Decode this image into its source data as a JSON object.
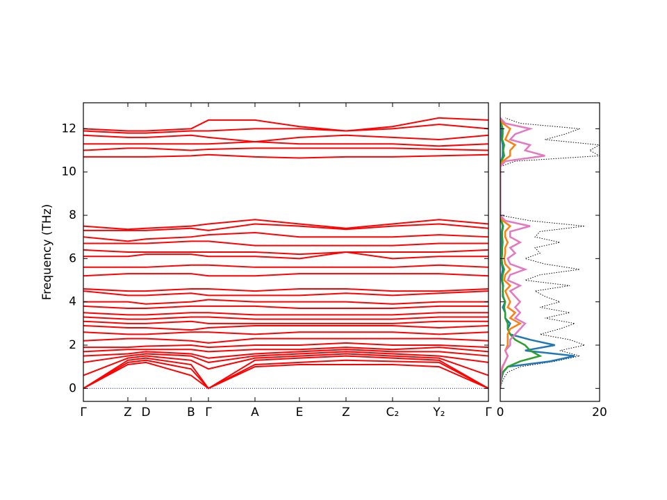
{
  "chart_data": [
    {
      "type": "line",
      "ylabel": "Frequency (THz)",
      "color": "#ff0000",
      "zero_line": {
        "value": 0,
        "color": "#0000cc"
      },
      "x": [
        0,
        0.64,
        0.9,
        1.55,
        1.8,
        2.47,
        3.11,
        3.78,
        4.45,
        5.12,
        5.83
      ],
      "xlim": [
        0,
        5.83
      ],
      "xticks": [
        {
          "value": 0,
          "label": "Γ"
        },
        {
          "value": 0.64,
          "label": "Z"
        },
        {
          "value": 0.9,
          "label": "D"
        },
        {
          "value": 1.55,
          "label": "B"
        },
        {
          "value": 1.8,
          "label": "Γ"
        },
        {
          "value": 2.47,
          "label": "A"
        },
        {
          "value": 3.11,
          "label": "E"
        },
        {
          "value": 3.78,
          "label": "Z"
        },
        {
          "value": 4.45,
          "label": "C₂"
        },
        {
          "value": 5.12,
          "label": "Y₂"
        },
        {
          "value": 5.83,
          "label": "Γ"
        }
      ],
      "ylim": [
        -0.6,
        13.2
      ],
      "yticks": [
        0,
        2,
        4,
        6,
        8,
        10,
        12
      ],
      "series": [
        {
          "values": [
            0,
            1.1,
            1.2,
            0.6,
            0,
            1.0,
            1.1,
            1.1,
            1.1,
            1.0,
            0
          ]
        },
        {
          "values": [
            0,
            1.2,
            1.3,
            0.9,
            0,
            1.1,
            1.2,
            1.3,
            1.25,
            1.2,
            0
          ]
        },
        {
          "values": [
            0,
            1.3,
            1.4,
            1.1,
            0,
            1.3,
            1.4,
            1.5,
            1.4,
            1.3,
            0
          ]
        },
        {
          "values": [
            0.6,
            1.4,
            1.5,
            1.3,
            0.9,
            1.4,
            1.5,
            1.6,
            1.5,
            1.4,
            0.6
          ]
        },
        {
          "values": [
            1.2,
            1.5,
            1.6,
            1.5,
            1.2,
            1.5,
            1.6,
            1.7,
            1.6,
            1.5,
            1.2
          ]
        },
        {
          "values": [
            1.5,
            1.6,
            1.7,
            1.6,
            1.4,
            1.6,
            1.7,
            1.8,
            1.7,
            1.7,
            1.5
          ]
        },
        {
          "values": [
            1.7,
            1.8,
            1.8,
            1.8,
            1.7,
            1.8,
            1.8,
            1.9,
            1.8,
            1.9,
            1.7
          ]
        },
        {
          "values": [
            1.9,
            1.9,
            1.95,
            2.0,
            1.9,
            2.0,
            2.0,
            2.1,
            2.0,
            2.0,
            1.9
          ]
        },
        {
          "values": [
            2.2,
            2.3,
            2.3,
            2.2,
            2.1,
            2.3,
            2.3,
            2.3,
            2.3,
            2.3,
            2.2
          ]
        },
        {
          "values": [
            2.6,
            2.5,
            2.5,
            2.6,
            2.6,
            2.5,
            2.6,
            2.6,
            2.6,
            2.5,
            2.6
          ]
        },
        {
          "values": [
            2.9,
            2.8,
            2.8,
            2.7,
            2.8,
            2.9,
            2.9,
            2.9,
            2.9,
            2.8,
            2.9
          ]
        },
        {
          "values": [
            3.1,
            3.0,
            3.0,
            3.1,
            3.0,
            3.0,
            3.0,
            3.0,
            3.0,
            3.1,
            3.1
          ]
        },
        {
          "values": [
            3.3,
            3.2,
            3.2,
            3.3,
            3.3,
            3.2,
            3.2,
            3.2,
            3.2,
            3.3,
            3.3
          ]
        },
        {
          "values": [
            3.5,
            3.4,
            3.4,
            3.5,
            3.5,
            3.4,
            3.4,
            3.4,
            3.4,
            3.5,
            3.5
          ]
        },
        {
          "values": [
            3.8,
            3.7,
            3.7,
            3.8,
            3.8,
            3.8,
            3.7,
            3.7,
            3.7,
            3.8,
            3.8
          ]
        },
        {
          "values": [
            4.0,
            4.0,
            3.9,
            4.0,
            4.1,
            4.0,
            4.0,
            4.0,
            3.9,
            4.0,
            4.0
          ]
        },
        {
          "values": [
            4.5,
            4.3,
            4.3,
            4.4,
            4.3,
            4.3,
            4.3,
            4.4,
            4.3,
            4.4,
            4.5
          ]
        },
        {
          "values": [
            4.6,
            4.5,
            4.5,
            4.6,
            4.6,
            4.5,
            4.6,
            4.6,
            4.5,
            4.5,
            4.6
          ]
        },
        {
          "values": [
            5.2,
            5.3,
            5.3,
            5.3,
            5.2,
            5.2,
            5.3,
            5.3,
            5.3,
            5.3,
            5.2
          ]
        },
        {
          "values": [
            5.6,
            5.6,
            5.6,
            5.7,
            5.7,
            5.6,
            5.6,
            5.6,
            5.6,
            5.7,
            5.6
          ]
        },
        {
          "values": [
            6.1,
            6.1,
            6.2,
            6.2,
            6.1,
            6.1,
            6.0,
            6.3,
            6.0,
            6.1,
            6.1
          ]
        },
        {
          "values": [
            6.4,
            6.3,
            6.3,
            6.3,
            6.3,
            6.3,
            6.2,
            6.3,
            6.3,
            6.3,
            6.4
          ]
        },
        {
          "values": [
            6.7,
            6.7,
            6.7,
            6.8,
            6.8,
            6.6,
            6.6,
            6.6,
            6.6,
            6.7,
            6.7
          ]
        },
        {
          "values": [
            7.0,
            6.8,
            6.9,
            7.0,
            7.1,
            7.2,
            7.0,
            7.0,
            7.0,
            7.1,
            7.0
          ]
        },
        {
          "values": [
            7.3,
            7.3,
            7.3,
            7.4,
            7.3,
            7.6,
            7.5,
            7.35,
            7.5,
            7.6,
            7.4
          ]
        },
        {
          "values": [
            7.5,
            7.35,
            7.4,
            7.5,
            7.6,
            7.8,
            7.6,
            7.4,
            7.6,
            7.8,
            7.6
          ]
        },
        {
          "values": [
            10.7,
            10.7,
            10.7,
            10.75,
            10.8,
            10.7,
            10.65,
            10.7,
            10.7,
            10.75,
            10.8
          ]
        },
        {
          "values": [
            11.0,
            11.1,
            11.1,
            11.0,
            11.05,
            11.1,
            11.1,
            11.1,
            11.1,
            11.05,
            11.0
          ]
        },
        {
          "values": [
            11.3,
            11.3,
            11.3,
            11.3,
            11.3,
            11.4,
            11.3,
            11.3,
            11.3,
            11.2,
            11.3
          ]
        },
        {
          "values": [
            11.7,
            11.6,
            11.6,
            11.7,
            11.6,
            11.4,
            11.6,
            11.7,
            11.6,
            11.5,
            11.7
          ]
        },
        {
          "values": [
            11.9,
            11.8,
            11.8,
            11.9,
            11.9,
            12.0,
            12.0,
            11.9,
            12.0,
            12.2,
            12.0
          ]
        },
        {
          "values": [
            12.0,
            11.9,
            11.9,
            12.0,
            12.4,
            12.4,
            12.1,
            11.9,
            12.1,
            12.5,
            12.4
          ]
        }
      ]
    },
    {
      "type": "dos",
      "orientation": "horizontal",
      "y": [
        0,
        0.25,
        0.5,
        0.75,
        1,
        1.25,
        1.5,
        1.75,
        2,
        2.25,
        2.5,
        2.75,
        3,
        3.25,
        3.5,
        3.75,
        4,
        4.25,
        4.5,
        4.75,
        5,
        5.25,
        5.5,
        5.75,
        6,
        6.25,
        6.5,
        6.75,
        7,
        7.25,
        7.5,
        7.75,
        8,
        8.25,
        8.5,
        8.75,
        9,
        9.25,
        9.5,
        9.75,
        10,
        10.25,
        10.5,
        10.75,
        11,
        11.25,
        11.5,
        11.75,
        12,
        12.25,
        12.5
      ],
      "xlim": [
        0,
        20
      ],
      "xticks": [
        0,
        20
      ],
      "ylim": [
        -0.6,
        13.2
      ],
      "yticks": [
        0,
        2,
        4,
        6,
        8,
        10,
        12
      ],
      "series": [
        {
          "color": "#000000",
          "linestyle": "dotted",
          "values": [
            0,
            0.3,
            0.8,
            1.5,
            4,
            11,
            16,
            12,
            17,
            14,
            8,
            12,
            15,
            9,
            14,
            8,
            12,
            9,
            7,
            14,
            5,
            8,
            16,
            9,
            5,
            8,
            7,
            12,
            7,
            8,
            17,
            6,
            0,
            0,
            0,
            0,
            0,
            0,
            0,
            0,
            0,
            0,
            3,
            20,
            18,
            20,
            9,
            13,
            16,
            4,
            1
          ]
        },
        {
          "color": "#1f77b4",
          "linestyle": "solid",
          "values": [
            0,
            0.1,
            0.3,
            0.6,
            1.5,
            10,
            15,
            5,
            11,
            6,
            2,
            1.5,
            2,
            1,
            1,
            0.5,
            1,
            0.5,
            0.5,
            0.5,
            0.3,
            0.3,
            0.5,
            0.3,
            0.3,
            0.3,
            0.3,
            0.3,
            0.3,
            0.3,
            0.5,
            0.2,
            0,
            0,
            0,
            0,
            0,
            0,
            0,
            0,
            0,
            0,
            0.2,
            0.5,
            0.5,
            0.5,
            0.3,
            0.3,
            0.3,
            0.2,
            0
          ]
        },
        {
          "color": "#2ca02c",
          "linestyle": "solid",
          "values": [
            0,
            0.1,
            0.2,
            0.5,
            1.5,
            4,
            8,
            6,
            5,
            3,
            2,
            1.5,
            1.5,
            1,
            1,
            0.8,
            1,
            0.6,
            0.5,
            0.6,
            0.4,
            0.5,
            0.8,
            0.4,
            0.3,
            0.4,
            0.4,
            0.5,
            0.4,
            0.4,
            0.6,
            0.2,
            0,
            0,
            0,
            0,
            0,
            0,
            0,
            0,
            0,
            0,
            0.2,
            0.8,
            0.6,
            0.8,
            0.4,
            0.5,
            0.5,
            0.2,
            0
          ]
        },
        {
          "color": "#ff7f0e",
          "linestyle": "solid",
          "values": [
            0,
            0,
            0.1,
            0.2,
            0.5,
            1,
            1.5,
            1,
            1.5,
            1.5,
            1.5,
            2,
            4,
            2,
            3,
            1.5,
            2,
            1.5,
            1,
            2,
            0.8,
            1,
            2,
            1,
            0.8,
            1,
            1,
            1.5,
            1,
            1,
            2,
            0.5,
            0,
            0,
            0,
            0,
            0,
            0,
            0,
            0,
            0,
            0,
            0.5,
            2,
            2,
            3,
            1,
            1.5,
            2,
            0.5,
            0
          ]
        },
        {
          "color": "#e377c2",
          "linestyle": "solid",
          "values": [
            0,
            0,
            0.1,
            0.2,
            0.4,
            1,
            1.5,
            1,
            2,
            2,
            3,
            4,
            5,
            3,
            4,
            3,
            4,
            3,
            2,
            4,
            1.5,
            2,
            5,
            2,
            1.5,
            3,
            2,
            4,
            2,
            2,
            6,
            1,
            0,
            0,
            0,
            0,
            0,
            0,
            0,
            0,
            0,
            0,
            1,
            9,
            5,
            6,
            2,
            3,
            6,
            1,
            0
          ]
        }
      ]
    }
  ]
}
